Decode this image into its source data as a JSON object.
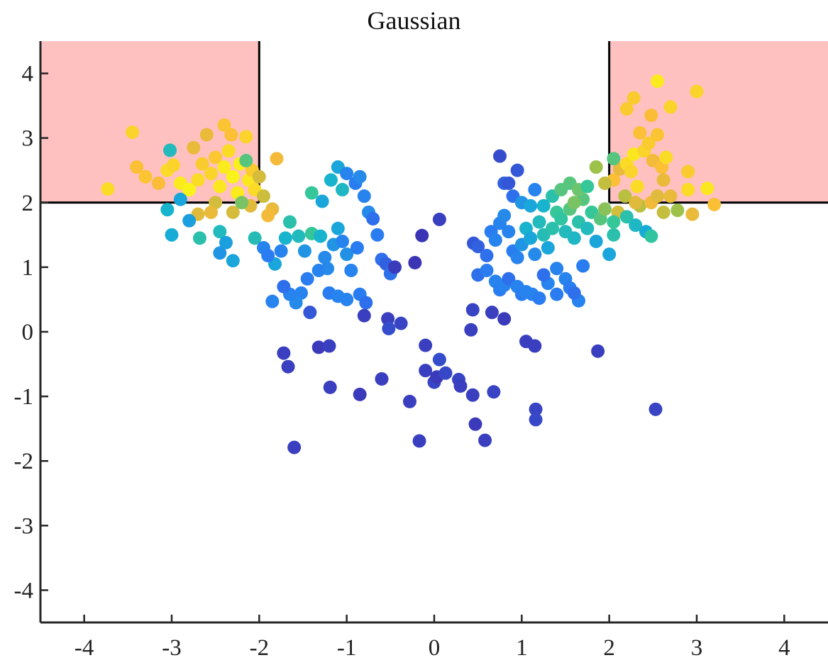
{
  "chart_data": {
    "type": "scatter",
    "title": "Gaussian",
    "xlabel": "",
    "ylabel": "",
    "xlim": [
      -4.5,
      4.5
    ],
    "ylim": [
      -4.5,
      4.5
    ],
    "xticks": [
      -4,
      -3,
      -2,
      -1,
      0,
      1,
      2,
      3,
      4
    ],
    "yticks": [
      -4,
      -3,
      -2,
      -1,
      0,
      1,
      2,
      3,
      4
    ],
    "xtick_labels": [
      "-4",
      "-3",
      "-2",
      "-1",
      "0",
      "1",
      "2",
      "3",
      "4"
    ],
    "ytick_labels": [
      "-4",
      "-3",
      "-2",
      "-1",
      "0",
      "1",
      "2",
      "3",
      "4"
    ],
    "grid": false,
    "regions": [
      {
        "x": [
          -4.5,
          -2
        ],
        "y": [
          2,
          4.5
        ],
        "fill": "#ffc0c0"
      },
      {
        "x": [
          2,
          4.5
        ],
        "y": [
          2,
          4.5
        ],
        "fill": "#ffc0c0"
      }
    ],
    "colormap": "parula",
    "color_stops": [
      "#3e26a8",
      "#2c78f4",
      "#15b1d3",
      "#35c79a",
      "#a8c040",
      "#fbb939",
      "#f9fb15"
    ],
    "points": [
      [
        -3.73,
        2.21,
        0.92
      ],
      [
        -3.45,
        3.09,
        0.9
      ],
      [
        -3.4,
        2.55,
        0.85
      ],
      [
        -3.3,
        2.4,
        0.86
      ],
      [
        -3.15,
        2.3,
        0.84
      ],
      [
        -3.05,
        2.5,
        0.92
      ],
      [
        -2.98,
        2.58,
        0.9
      ],
      [
        -2.9,
        2.3,
        0.96
      ],
      [
        -2.8,
        2.2,
        0.98
      ],
      [
        -2.7,
        2.35,
        0.92
      ],
      [
        -2.65,
        2.6,
        0.88
      ],
      [
        -2.55,
        2.45,
        0.9
      ],
      [
        -2.5,
        2.7,
        0.87
      ],
      [
        -2.45,
        2.25,
        0.95
      ],
      [
        -2.4,
        2.55,
        0.96
      ],
      [
        -2.35,
        2.8,
        0.92
      ],
      [
        -2.32,
        3.05,
        0.85
      ],
      [
        -2.3,
        2.4,
        0.98
      ],
      [
        -2.25,
        2.15,
        0.96
      ],
      [
        -2.22,
        2.6,
        0.97
      ],
      [
        -2.15,
        3.02,
        0.9
      ],
      [
        -2.12,
        2.35,
        0.95
      ],
      [
        -2.08,
        2.5,
        0.88
      ],
      [
        -2.05,
        2.2,
        0.92
      ],
      [
        -2.4,
        3.2,
        0.86
      ],
      [
        -2.6,
        3.05,
        0.8
      ],
      [
        -2.75,
        2.85,
        0.8
      ],
      [
        -2.5,
        2.0,
        0.75
      ],
      [
        -2.3,
        1.85,
        0.76
      ],
      [
        -2.1,
        1.95,
        0.78
      ],
      [
        -1.95,
        2.1,
        0.74
      ],
      [
        -1.85,
        1.9,
        0.8
      ],
      [
        -1.8,
        2.68,
        0.82
      ],
      [
        -2.0,
        2.4,
        0.76
      ],
      [
        -2.55,
        1.85,
        0.8
      ],
      [
        -2.7,
        1.82,
        0.78
      ],
      [
        -1.9,
        1.8,
        0.82
      ],
      [
        -2.15,
        2.65,
        0.55
      ],
      [
        -2.2,
        2.0,
        0.6
      ],
      [
        -3.02,
        2.81,
        0.4
      ],
      [
        -3.05,
        1.89,
        0.35
      ],
      [
        -3.0,
        1.5,
        0.32
      ],
      [
        -2.9,
        2.05,
        0.3
      ],
      [
        -2.8,
        1.72,
        0.28
      ],
      [
        -2.68,
        1.45,
        0.45
      ],
      [
        -2.45,
        1.55,
        0.4
      ],
      [
        -2.3,
        1.1,
        0.3
      ],
      [
        -2.45,
        1.22,
        0.25
      ],
      [
        -2.38,
        1.38,
        0.28
      ],
      [
        -2.05,
        1.45,
        0.42
      ],
      [
        -1.95,
        1.3,
        0.2
      ],
      [
        -1.82,
        1.05,
        0.3
      ],
      [
        -1.9,
        1.18,
        0.18
      ],
      [
        -1.75,
        1.25,
        0.2
      ],
      [
        -1.7,
        1.45,
        0.35
      ],
      [
        -1.65,
        1.7,
        0.45
      ],
      [
        -1.55,
        1.48,
        0.4
      ],
      [
        -1.48,
        1.25,
        0.25
      ],
      [
        -1.4,
        1.52,
        0.5
      ],
      [
        -1.3,
        1.48,
        0.35
      ],
      [
        -1.25,
        1.15,
        0.22
      ],
      [
        -1.15,
        1.35,
        0.25
      ],
      [
        -1.1,
        1.6,
        0.3
      ],
      [
        -1.05,
        1.4,
        0.2
      ],
      [
        -1.0,
        1.2,
        0.24
      ],
      [
        -1.4,
        2.15,
        0.5
      ],
      [
        -1.28,
        2.02,
        0.3
      ],
      [
        -1.18,
        2.35,
        0.35
      ],
      [
        -1.1,
        2.55,
        0.3
      ],
      [
        -1.05,
        2.2,
        0.38
      ],
      [
        -1.0,
        2.45,
        0.2
      ],
      [
        -0.9,
        2.3,
        0.18
      ],
      [
        -0.85,
        2.4,
        0.22
      ],
      [
        -0.8,
        2.1,
        0.2
      ],
      [
        -0.75,
        1.85,
        0.22
      ],
      [
        -0.7,
        1.75,
        0.15
      ],
      [
        -0.65,
        1.5,
        0.18
      ],
      [
        -0.6,
        1.12,
        0.15
      ],
      [
        -0.55,
        1.05,
        0.12
      ],
      [
        -0.5,
        0.9,
        0.15
      ],
      [
        -0.88,
        1.3,
        0.18
      ],
      [
        -0.95,
        0.95,
        0.2
      ],
      [
        -1.22,
        0.98,
        0.22
      ],
      [
        -1.32,
        0.95,
        0.2
      ],
      [
        -1.45,
        0.82,
        0.18
      ],
      [
        -1.52,
        0.6,
        0.2
      ],
      [
        -1.58,
        0.45,
        0.22
      ],
      [
        -1.65,
        0.58,
        0.2
      ],
      [
        -1.72,
        0.7,
        0.15
      ],
      [
        -1.85,
        0.47,
        0.2
      ],
      [
        -1.2,
        0.6,
        0.18
      ],
      [
        -1.1,
        0.55,
        0.2
      ],
      [
        -1.0,
        0.5,
        0.2
      ],
      [
        -0.85,
        0.58,
        0.18
      ],
      [
        -0.78,
        0.45,
        0.15
      ],
      [
        -1.42,
        0.3,
        0.1
      ],
      [
        -0.8,
        0.25,
        0.05
      ],
      [
        -0.53,
        0.2,
        0.05
      ],
      [
        -0.52,
        0.05,
        0.08
      ],
      [
        -0.38,
        0.13,
        0.06
      ],
      [
        -0.45,
        1.0,
        0.04
      ],
      [
        -0.22,
        1.07,
        0.03
      ],
      [
        -0.14,
        1.49,
        0.03
      ],
      [
        0.06,
        1.74,
        0.05
      ],
      [
        -1.72,
        -0.33,
        0.05
      ],
      [
        -1.67,
        -0.54,
        0.05
      ],
      [
        -1.32,
        -0.24,
        0.04
      ],
      [
        -1.2,
        -0.22,
        0.05
      ],
      [
        -1.19,
        -0.86,
        0.05
      ],
      [
        -0.85,
        -0.97,
        0.04
      ],
      [
        -0.6,
        -0.73,
        0.05
      ],
      [
        -0.28,
        -1.08,
        0.05
      ],
      [
        -0.17,
        -1.69,
        0.05
      ],
      [
        -0.1,
        -0.6,
        0.05
      ],
      [
        -0.1,
        -0.21,
        0.05
      ],
      [
        0.0,
        -0.78,
        0.06
      ],
      [
        0.03,
        -0.7,
        0.04
      ],
      [
        0.06,
        -0.43,
        0.08
      ],
      [
        0.13,
        -0.64,
        0.07
      ],
      [
        0.28,
        -0.74,
        0.06
      ],
      [
        0.3,
        -0.84,
        0.05
      ],
      [
        0.44,
        -0.98,
        0.05
      ],
      [
        0.47,
        -1.43,
        0.04
      ],
      [
        0.58,
        -1.68,
        0.05
      ],
      [
        0.68,
        -0.93,
        0.06
      ],
      [
        -1.6,
        -1.79,
        0.05
      ],
      [
        0.42,
        0.03,
        0.05
      ],
      [
        0.44,
        0.34,
        0.06
      ],
      [
        0.66,
        0.3,
        0.05
      ],
      [
        0.8,
        0.2,
        0.04
      ],
      [
        1.05,
        -0.15,
        0.05
      ],
      [
        1.15,
        -0.22,
        0.05
      ],
      [
        1.16,
        -1.2,
        0.06
      ],
      [
        1.16,
        -1.36,
        0.07
      ],
      [
        1.87,
        -0.3,
        0.05
      ],
      [
        2.53,
        -1.2,
        0.06
      ],
      [
        0.45,
        1.37,
        0.1
      ],
      [
        0.5,
        1.32,
        0.12
      ],
      [
        0.6,
        1.18,
        0.15
      ],
      [
        0.65,
        1.55,
        0.18
      ],
      [
        0.7,
        1.42,
        0.2
      ],
      [
        0.75,
        1.68,
        0.2
      ],
      [
        0.8,
        1.8,
        0.22
      ],
      [
        0.85,
        1.55,
        0.2
      ],
      [
        0.9,
        1.25,
        0.18
      ],
      [
        0.95,
        1.15,
        0.2
      ],
      [
        1.0,
        1.35,
        0.25
      ],
      [
        1.05,
        1.6,
        0.35
      ],
      [
        1.1,
        1.45,
        0.3
      ],
      [
        1.15,
        1.2,
        0.22
      ],
      [
        1.2,
        1.7,
        0.4
      ],
      [
        1.25,
        1.5,
        0.42
      ],
      [
        1.3,
        1.3,
        0.3
      ],
      [
        1.35,
        1.6,
        0.45
      ],
      [
        1.4,
        1.85,
        0.5
      ],
      [
        1.45,
        1.75,
        0.48
      ],
      [
        1.5,
        1.55,
        0.4
      ],
      [
        1.55,
        1.9,
        0.55
      ],
      [
        1.6,
        1.45,
        0.38
      ],
      [
        1.65,
        1.7,
        0.45
      ],
      [
        1.7,
        2.05,
        0.55
      ],
      [
        1.75,
        1.6,
        0.4
      ],
      [
        1.8,
        1.85,
        0.5
      ],
      [
        1.85,
        1.4,
        0.3
      ],
      [
        1.9,
        1.75,
        0.55
      ],
      [
        0.8,
        2.3,
        0.12
      ],
      [
        0.9,
        2.1,
        0.15
      ],
      [
        0.95,
        2.5,
        0.1
      ],
      [
        0.75,
        2.72,
        0.08
      ],
      [
        0.85,
        2.3,
        0.1
      ],
      [
        1.0,
        2.0,
        0.25
      ],
      [
        1.1,
        1.95,
        0.3
      ],
      [
        1.15,
        2.2,
        0.2
      ],
      [
        1.25,
        1.95,
        0.35
      ],
      [
        1.35,
        2.1,
        0.45
      ],
      [
        1.45,
        2.2,
        0.55
      ],
      [
        1.55,
        2.3,
        0.55
      ],
      [
        1.6,
        2.0,
        0.6
      ],
      [
        1.65,
        2.2,
        0.58
      ],
      [
        1.75,
        2.25,
        0.5
      ],
      [
        0.5,
        0.88,
        0.15
      ],
      [
        0.6,
        0.95,
        0.18
      ],
      [
        0.7,
        0.78,
        0.2
      ],
      [
        0.75,
        0.65,
        0.18
      ],
      [
        0.8,
        0.72,
        0.2
      ],
      [
        0.85,
        0.82,
        0.15
      ],
      [
        0.95,
        0.7,
        0.2
      ],
      [
        1.0,
        0.58,
        0.18
      ],
      [
        1.05,
        0.62,
        0.2
      ],
      [
        1.12,
        0.58,
        0.2
      ],
      [
        1.2,
        0.52,
        0.18
      ],
      [
        1.3,
        0.75,
        0.2
      ],
      [
        1.4,
        0.58,
        0.18
      ],
      [
        1.5,
        0.82,
        0.2
      ],
      [
        1.55,
        0.68,
        0.18
      ],
      [
        1.65,
        0.48,
        0.2
      ],
      [
        1.6,
        0.6,
        0.15
      ],
      [
        1.7,
        1.02,
        0.18
      ],
      [
        1.4,
        0.98,
        0.2
      ],
      [
        1.25,
        0.88,
        0.15
      ],
      [
        2.05,
        2.35,
        0.85
      ],
      [
        2.12,
        2.52,
        0.8
      ],
      [
        2.2,
        2.6,
        0.92
      ],
      [
        2.25,
        2.48,
        0.9
      ],
      [
        2.28,
        2.75,
        0.95
      ],
      [
        2.32,
        2.25,
        0.92
      ],
      [
        2.4,
        2.8,
        0.9
      ],
      [
        2.45,
        2.92,
        0.88
      ],
      [
        2.5,
        2.65,
        0.82
      ],
      [
        2.55,
        3.05,
        0.86
      ],
      [
        2.6,
        2.55,
        0.85
      ],
      [
        2.62,
        2.35,
        0.8
      ],
      [
        2.65,
        2.7,
        0.92
      ],
      [
        2.7,
        2.1,
        0.8
      ],
      [
        2.28,
        3.62,
        0.88
      ],
      [
        2.2,
        3.45,
        0.88
      ],
      [
        2.55,
        3.88,
        0.96
      ],
      [
        2.7,
        3.48,
        0.9
      ],
      [
        3.0,
        3.72,
        0.9
      ],
      [
        2.35,
        3.08,
        0.85
      ],
      [
        2.48,
        3.35,
        0.84
      ],
      [
        2.9,
        2.48,
        0.88
      ],
      [
        2.9,
        2.2,
        0.92
      ],
      [
        3.12,
        2.22,
        0.95
      ],
      [
        3.2,
        1.97,
        0.85
      ],
      [
        2.95,
        1.82,
        0.8
      ],
      [
        2.62,
        1.85,
        0.72
      ],
      [
        2.78,
        1.88,
        0.65
      ],
      [
        2.35,
        1.95,
        0.7
      ],
      [
        2.1,
        1.85,
        0.75
      ],
      [
        2.05,
        1.7,
        0.5
      ],
      [
        2.2,
        1.78,
        0.45
      ],
      [
        2.3,
        1.65,
        0.38
      ],
      [
        2.42,
        1.55,
        0.32
      ],
      [
        2.48,
        1.48,
        0.48
      ],
      [
        2.05,
        1.5,
        0.45
      ],
      [
        2.0,
        1.2,
        0.3
      ],
      [
        1.95,
        1.9,
        0.62
      ],
      [
        2.05,
        2.68,
        0.55
      ],
      [
        1.85,
        2.55,
        0.65
      ],
      [
        1.95,
        2.3,
        0.72
      ],
      [
        2.18,
        2.1,
        0.7
      ],
      [
        2.3,
        2.0,
        0.78
      ],
      [
        2.48,
        2.0,
        0.82
      ],
      [
        2.55,
        2.1,
        0.78
      ]
    ]
  }
}
